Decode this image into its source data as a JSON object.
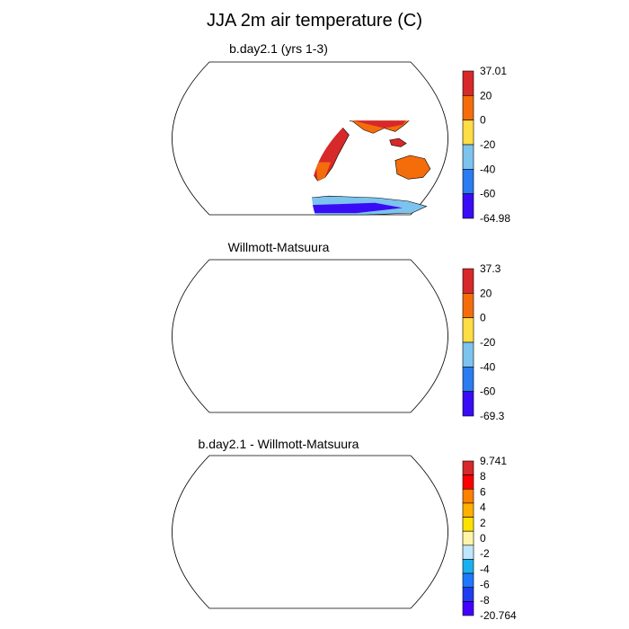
{
  "title": "JJA 2m air temperature (C)",
  "panels": [
    {
      "title": "b.day2.1 (yrs 1-3)",
      "colorbar": {
        "labels": [
          "37.01",
          "20",
          "0",
          "-20",
          "-40",
          "-60",
          "-64.98"
        ],
        "colors": [
          "#d7282a",
          "#f46d0a",
          "#ffdd44",
          "#7cc3ee",
          "#2b7cf1",
          "#3a0cf5"
        ]
      }
    },
    {
      "title": "Willmott-Matsuura",
      "colorbar": {
        "labels": [
          "37.3",
          "20",
          "0",
          "-20",
          "-40",
          "-60",
          "-69.3"
        ],
        "colors": [
          "#d7282a",
          "#f46d0a",
          "#ffdd44",
          "#7cc3ee",
          "#2b7cf1",
          "#3a0cf5"
        ]
      }
    },
    {
      "title": "b.day2.1 - Willmott-Matsuura",
      "colorbar": {
        "labels": [
          "9.741",
          "8",
          "6",
          "4",
          "2",
          "0",
          "-2",
          "-4",
          "-6",
          "-8",
          "-20.764"
        ],
        "colors": [
          "#d7282a",
          "#ff0000",
          "#ff7f00",
          "#ffb000",
          "#ffe100",
          "#fff4a8",
          "#bfe6ff",
          "#1ab0f0",
          "#1e78ff",
          "#1f3cf0",
          "#4400ff"
        ]
      }
    }
  ]
}
